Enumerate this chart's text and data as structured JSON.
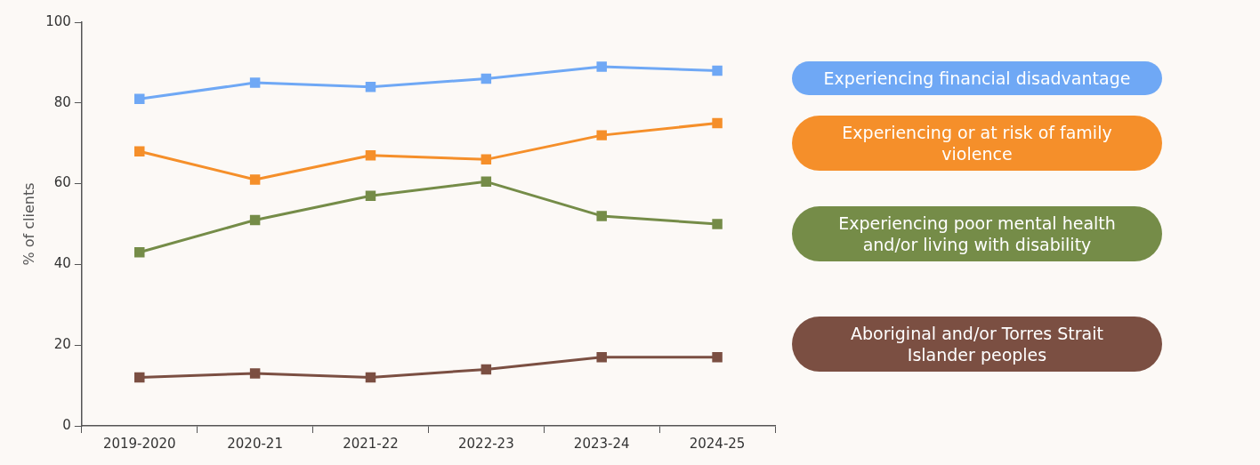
{
  "chart_data": {
    "type": "line",
    "ylabel": "% of clients",
    "categories": [
      "2019-2020",
      "2020-21",
      "2021-22",
      "2022-23",
      "2023-24",
      "2024-25"
    ],
    "series": [
      {
        "name": "Experiencing financial disadvantage",
        "color": "#6fa8f5",
        "values": [
          81,
          85,
          84,
          86,
          89,
          88
        ]
      },
      {
        "name": "Experiencing or at risk of family violence",
        "color": "#f58f2a",
        "values": [
          68,
          61,
          67,
          66,
          72,
          75
        ]
      },
      {
        "name": "Experiencing poor mental health and/or living with disability",
        "color": "#758c48",
        "values": [
          43,
          51,
          57,
          60.5,
          52,
          50
        ]
      },
      {
        "name": "Aboriginal and/or Torres Strait Islander peoples",
        "color": "#7b4f42",
        "values": [
          12,
          13,
          12,
          14,
          17,
          17
        ]
      }
    ],
    "ylim": [
      0,
      100
    ],
    "yticks": [
      0,
      20,
      40,
      60,
      80,
      100
    ],
    "legend": "right",
    "marker": "square",
    "line_style": "solid"
  }
}
